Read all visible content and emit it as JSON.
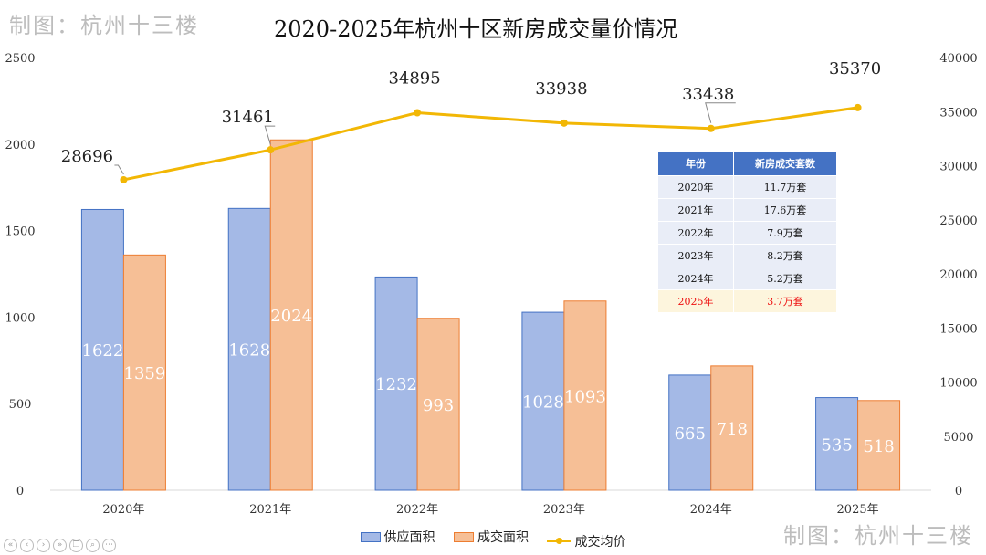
{
  "watermark": "制图：杭州十三楼",
  "chart_data": {
    "type": "bar",
    "title": "2020-2025年杭州十区新房成交量价情况",
    "categories": [
      "2020年",
      "2021年",
      "2022年",
      "2023年",
      "2024年",
      "2025年"
    ],
    "series": [
      {
        "name": "供应面积",
        "kind": "bar",
        "axis": "left",
        "values": [
          1622,
          1628,
          1232,
          1028,
          665,
          535
        ],
        "color": "#a4b9e6",
        "stroke": "#4472c4"
      },
      {
        "name": "成交面积",
        "kind": "bar",
        "axis": "left",
        "values": [
          1359,
          2024,
          993,
          1093,
          718,
          518
        ],
        "color": "#f6bf96",
        "stroke": "#ed7d31"
      },
      {
        "name": "成交均价",
        "kind": "line",
        "axis": "right",
        "values": [
          28696,
          31461,
          34895,
          33938,
          33438,
          35370
        ],
        "color": "#f2b705"
      }
    ],
    "y_left": {
      "min": 0,
      "max": 2500,
      "ticks": [
        0,
        500,
        1000,
        1500,
        2000,
        2500
      ]
    },
    "y_right": {
      "min": 0,
      "max": 40000,
      "ticks": [
        0,
        5000,
        10000,
        15000,
        20000,
        25000,
        30000,
        35000,
        40000
      ]
    },
    "legend_position": "bottom"
  },
  "table": {
    "headers": [
      "年份",
      "新房成交套数"
    ],
    "rows": [
      [
        "2020年",
        "11.7万套"
      ],
      [
        "2021年",
        "17.6万套"
      ],
      [
        "2022年",
        "7.9万套"
      ],
      [
        "2023年",
        "8.2万套"
      ],
      [
        "2024年",
        "5.2万套"
      ],
      [
        "2025年",
        "3.7万套"
      ]
    ],
    "highlight_row": 5,
    "highlight_color": "#e11111"
  },
  "toolbar_icons": [
    "rewind-icon",
    "previous-icon",
    "next-icon",
    "forward-icon",
    "copy-icon",
    "zoom-icon",
    "more-icon"
  ]
}
